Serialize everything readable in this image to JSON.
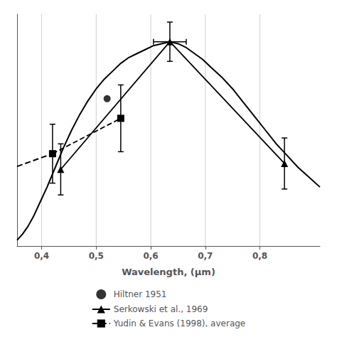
{
  "chart_data": {
    "type": "line",
    "xlabel": "Wavelength, (μm)",
    "xlim": [
      0.355,
      0.91
    ],
    "ylim": [
      0.0,
      1.18
    ],
    "xticks": [
      {
        "value": 0.4,
        "label": "0,4"
      },
      {
        "value": 0.5,
        "label": "0,5"
      },
      {
        "value": 0.6,
        "label": "0,6"
      },
      {
        "value": 0.7,
        "label": "0,7"
      },
      {
        "value": 0.8,
        "label": "0,8"
      }
    ],
    "yticks": [],
    "tick_labels": "x",
    "grid": true,
    "legend": "bottom",
    "color": "#000000",
    "series": [
      {
        "type": "line",
        "line_style": "solid",
        "x": [
          0.355,
          0.365,
          0.375,
          0.385,
          0.395,
          0.41,
          0.425,
          0.44,
          0.455,
          0.47,
          0.485,
          0.5,
          0.515,
          0.53,
          0.545,
          0.56,
          0.575,
          0.59,
          0.605,
          0.62,
          0.635,
          0.65,
          0.665,
          0.68,
          0.695,
          0.71,
          0.73,
          0.75,
          0.77,
          0.79,
          0.81,
          0.83,
          0.85,
          0.87,
          0.89,
          0.91
        ],
        "values": [
          0.03,
          0.06,
          0.1,
          0.15,
          0.21,
          0.3,
          0.4,
          0.5,
          0.59,
          0.67,
          0.74,
          0.8,
          0.85,
          0.89,
          0.93,
          0.96,
          0.98,
          1.0,
          1.02,
          1.03,
          1.04,
          1.03,
          1.01,
          0.98,
          0.95,
          0.91,
          0.86,
          0.8,
          0.73,
          0.66,
          0.59,
          0.52,
          0.46,
          0.4,
          0.35,
          0.3
        ]
      },
      {
        "name": "Hiltner 1951",
        "type": "scatter",
        "marker": "circle",
        "x": [
          0.52
        ],
        "values": [
          0.75
        ]
      },
      {
        "name": "Serkowski et al., 1969",
        "type": "line",
        "marker": "triangle",
        "line_style": "solid",
        "x": [
          0.435,
          0.635,
          0.845
        ],
        "values": [
          0.39,
          1.04,
          0.42
        ],
        "yerr": [
          0.13,
          0.1,
          0.13
        ],
        "xerr_lo": [
          0.0,
          0.03,
          0.0
        ],
        "xerr_hi": [
          0.0,
          0.03,
          0.0
        ]
      },
      {
        "name": "Yudin & Evans (1998), average",
        "type": "line",
        "marker": "square",
        "line_style": "dashed",
        "x": [
          0.42,
          0.545
        ],
        "values": [
          0.47,
          0.65
        ],
        "yerr_lo": [
          0.15,
          0.17
        ],
        "yerr_hi": [
          0.15,
          0.17
        ]
      },
      {
        "type": "line",
        "line_style": "dashed",
        "x": [
          0.355,
          0.42
        ],
        "values": [
          0.405,
          0.47
        ]
      }
    ]
  }
}
